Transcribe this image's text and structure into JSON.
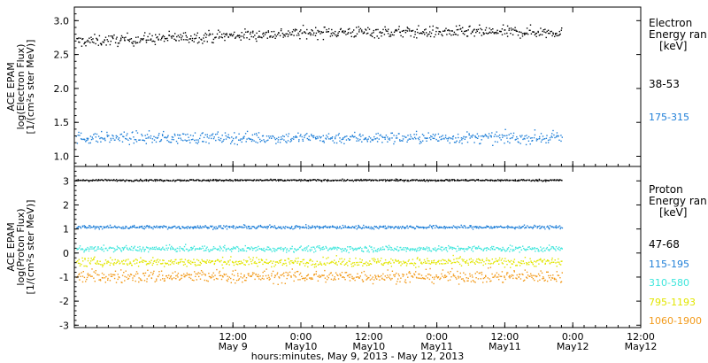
{
  "chart_data": [
    {
      "type": "scatter",
      "panel": "electron",
      "ylabel_lines": [
        "ACE EPAM",
        "log(Electron Flux)",
        "[1/(cm²s ster MeV)]"
      ],
      "ylim": [
        0.85,
        3.2
      ],
      "yticks": [
        "1.0",
        "1.5",
        "2.0",
        "2.5",
        "3.0"
      ],
      "ytick_values": [
        1.0,
        1.5,
        2.0,
        2.5,
        3.0
      ],
      "legend_title_lines": [
        "Electron",
        "Energy ran",
        "[keV]"
      ],
      "series": [
        {
          "name": "38-53",
          "color": "#000000",
          "mean": 2.75,
          "spread": 0.07
        },
        {
          "name": "175-315",
          "color": "#1f7fd8",
          "mean": 1.28,
          "spread": 0.07
        }
      ]
    },
    {
      "type": "scatter",
      "panel": "proton",
      "ylabel_lines": [
        "ACE EPAM",
        "log(Proton Flux)",
        "[1/(cm²s ster MeV)]"
      ],
      "ylim": [
        -3.1,
        3.6
      ],
      "yticks": [
        "-3",
        "-2",
        "-1",
        "0",
        "1",
        "2",
        "3"
      ],
      "ytick_values": [
        -3,
        -2,
        -1,
        0,
        1,
        2,
        3
      ],
      "legend_title_lines": [
        "Proton",
        "Energy ran",
        "[keV]"
      ],
      "series": [
        {
          "name": "47-68",
          "color": "#000000",
          "mean": 3.05,
          "spread": 0.03
        },
        {
          "name": "115-195",
          "color": "#1f7fd8",
          "mean": 1.1,
          "spread": 0.06
        },
        {
          "name": "310-580",
          "color": "#3ee6dc",
          "mean": 0.2,
          "spread": 0.1
        },
        {
          "name": "795-1193",
          "color": "#e2e600",
          "mean": -0.35,
          "spread": 0.15
        },
        {
          "name": "1060-1900",
          "color": "#f29a1a",
          "mean": -0.95,
          "spread": 0.22
        }
      ]
    }
  ],
  "x_axis": {
    "range_hours": [
      -16,
      84
    ],
    "data_end_hours": 70,
    "tick_hours": [
      12,
      24,
      36,
      48,
      60,
      72,
      84
    ],
    "tick_labels": [
      [
        "12:00",
        "May 9"
      ],
      [
        "0:00",
        "May10"
      ],
      [
        "12:00",
        "May10"
      ],
      [
        "0:00",
        "May11"
      ],
      [
        "12:00",
        "May11"
      ],
      [
        "0:00",
        "May12"
      ],
      [
        "12:00",
        "May12"
      ]
    ],
    "title": "hours:minutes, May  9, 2013 - May 12, 2013"
  }
}
